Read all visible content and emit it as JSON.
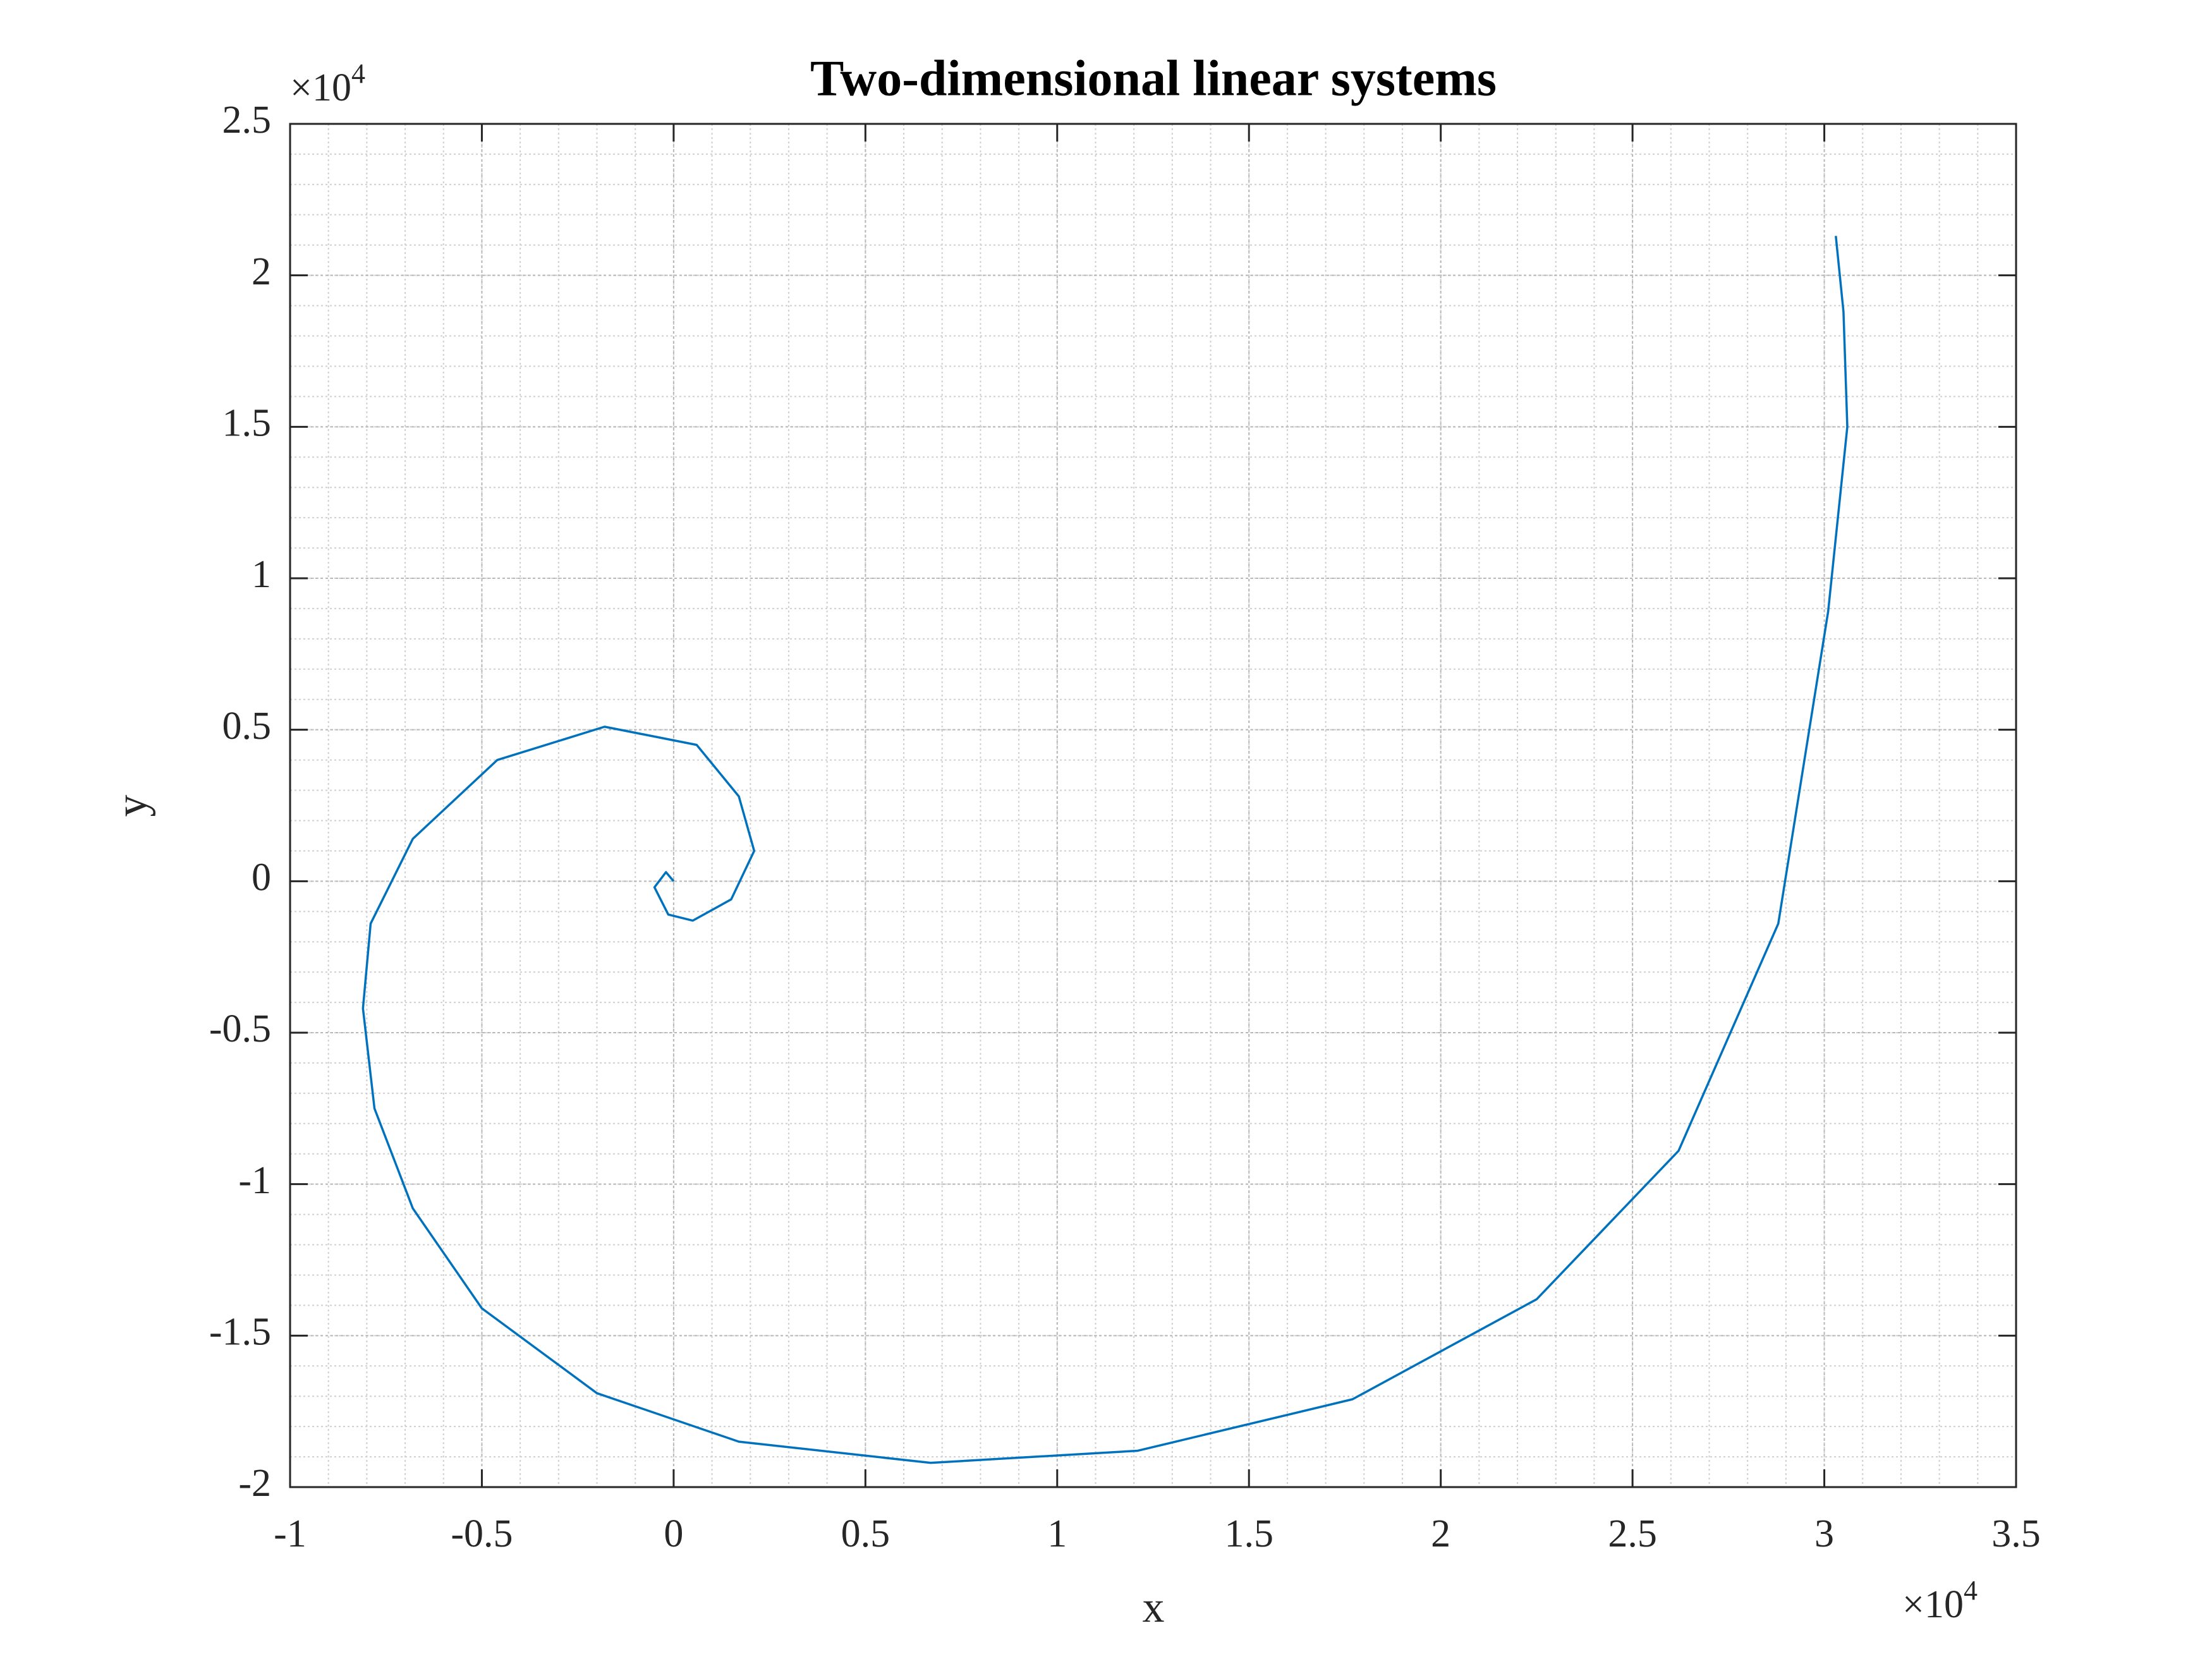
{
  "chart_data": {
    "type": "line",
    "title": "Two-dimensional linear systems",
    "x_label": "x",
    "y_label": "y",
    "x_exponent_base": "×10",
    "x_exponent_power": "4",
    "y_exponent_base": "×10",
    "y_exponent_power": "4",
    "series": [
      {
        "color": "#0072bd",
        "x": [
          0,
          -0.02,
          -0.05,
          -0.014,
          0.05,
          0.15,
          0.21,
          0.17,
          0.06,
          -0.18,
          -0.46,
          -0.68,
          -0.79,
          -0.81,
          -0.78,
          -0.68,
          -0.5,
          -0.2,
          0.17,
          0.67,
          1.21,
          1.77,
          2.25,
          2.62,
          2.88,
          3.01,
          3.06,
          3.05,
          3.03
        ],
        "values": [
          0,
          0.03,
          -0.02,
          -0.11,
          -0.13,
          -0.06,
          0.1,
          0.28,
          0.45,
          0.51,
          0.4,
          0.14,
          -0.14,
          -0.42,
          -0.75,
          -1.08,
          -1.41,
          -1.69,
          -1.85,
          -1.92,
          -1.88,
          -1.71,
          -1.38,
          -0.89,
          -0.14,
          0.89,
          1.5,
          1.88,
          2.13
        ]
      }
    ],
    "xlim": [
      -1,
      3.5
    ],
    "xticks": [
      -1,
      -0.5,
      0,
      0.5,
      1,
      1.5,
      2,
      2.5,
      3,
      3.5
    ],
    "ylim": [
      -2,
      2.5
    ],
    "yticks": [
      -2,
      -1.5,
      -1,
      -0.5,
      0,
      0.5,
      1,
      1.5,
      2,
      2.5
    ],
    "grid": true,
    "minor_grid": true
  }
}
